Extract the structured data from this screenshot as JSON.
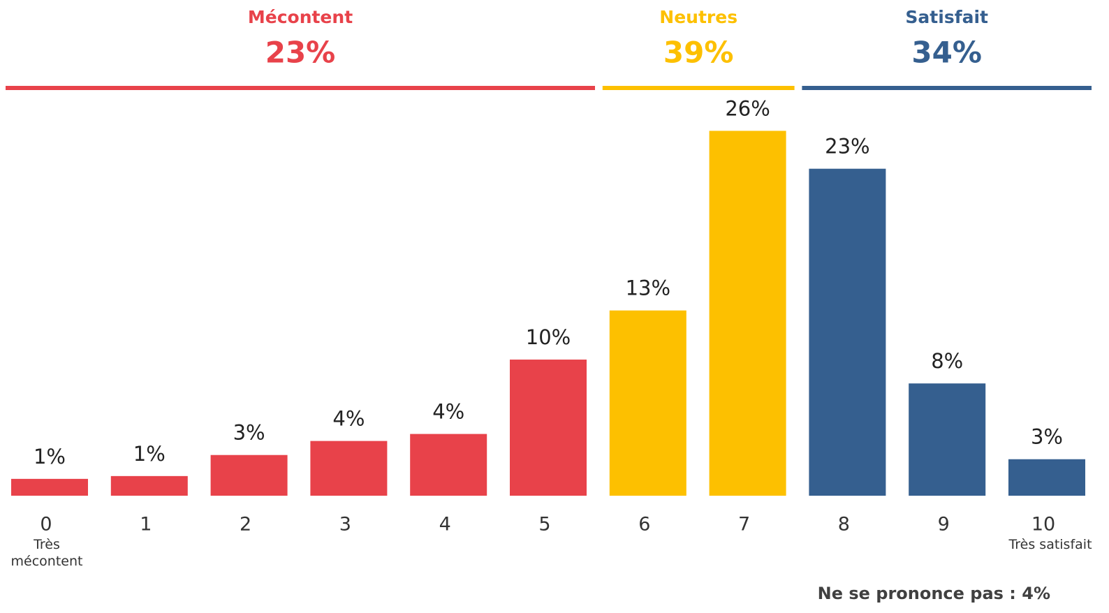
{
  "chart_data": {
    "type": "bar",
    "categories": [
      "0",
      "1",
      "2",
      "3",
      "4",
      "5",
      "6",
      "7",
      "8",
      "9",
      "10"
    ],
    "values": [
      1.2,
      1.4,
      2.9,
      3.9,
      4.4,
      9.7,
      13.2,
      26,
      23.3,
      8,
      2.6
    ],
    "value_labels": [
      "1%",
      "1%",
      "3%",
      "4%",
      "4%",
      "10%",
      "13%",
      "26%",
      "23%",
      "8%",
      "3%"
    ],
    "scale_start_label": "Très mécontent",
    "scale_end_label": "Très satisfait",
    "groups": [
      {
        "name": "Mécontent",
        "value": 23,
        "value_label": "23%",
        "color": "#e8424a",
        "from": 0,
        "to": 5
      },
      {
        "name": "Neutres",
        "value": 39,
        "value_label": "39%",
        "color": "#fdc000",
        "from": 6,
        "to": 7
      },
      {
        "name": "Satisfait",
        "value": 34,
        "value_label": "34%",
        "color": "#355f8f",
        "from": 8,
        "to": 10
      }
    ],
    "note": "Ne se prononce pas : 4%"
  }
}
